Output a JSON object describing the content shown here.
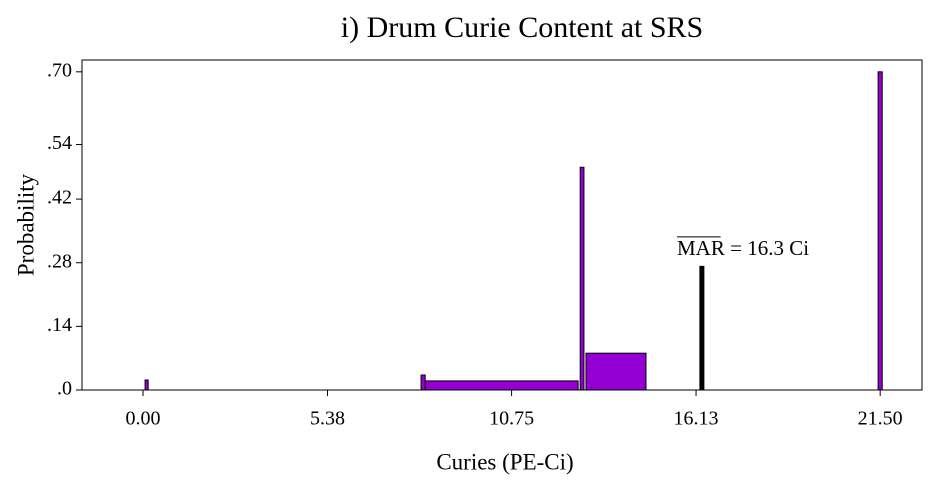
{
  "chart_data": {
    "type": "bars",
    "title": "i) Drum Curie Content at SRS",
    "x_label": "Curies (PE-Ci)",
    "y_label": "Probability",
    "x0": [
      0.06,
      8.11,
      8.23,
      12.75,
      12.92,
      21.44
    ],
    "x1": [
      0.15,
      8.23,
      12.69,
      12.86,
      14.67,
      21.56
    ],
    "values": [
      0.022,
      0.033,
      0.02,
      0.49,
      0.081,
      0.7
    ],
    "color": "#9400d3",
    "reference": {
      "x": 16.3,
      "value": 0.273,
      "label": "MAR = 16.3 Ci",
      "color": "#000000"
    },
    "xlim": [
      -1.78,
      22.72
    ],
    "ylim": [
      0,
      0.726
    ],
    "xticks": [
      {
        "value": 0,
        "label": "0.00"
      },
      5.38,
      10.75,
      16.13,
      {
        "value": 21.5,
        "label": "21.50"
      }
    ],
    "yticks": [
      {
        "value": 0,
        "label": ".0"
      },
      {
        "value": 0.14,
        "label": ".14"
      },
      {
        "value": 0.28,
        "label": ".28"
      },
      {
        "value": 0.42,
        "label": ".42"
      },
      {
        "value": 0.54,
        "label": ".54"
      },
      {
        "value": 0.7,
        "label": ".70"
      }
    ]
  }
}
